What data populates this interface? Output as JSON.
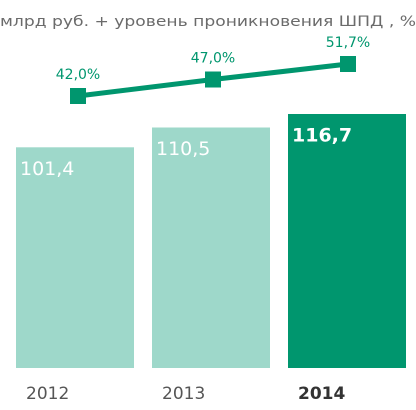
{
  "chart_data": {
    "type": "bar",
    "title": "млрд руб. + уровень проникновения ШПД , %",
    "categories": [
      "2012",
      "2013",
      "2014"
    ],
    "values": [
      101.4,
      110.5,
      116.7
    ],
    "value_labels": [
      "101,4",
      "110,5",
      "116,7"
    ],
    "colors": [
      "#9ed8ca",
      "#9ed8ca",
      "#00966e"
    ],
    "highlight": 2,
    "line": {
      "values": [
        42.0,
        47.0,
        51.7
      ],
      "value_labels": [
        "42,0%",
        "47,0%",
        "51,7%"
      ],
      "color": "#00966e"
    }
  }
}
